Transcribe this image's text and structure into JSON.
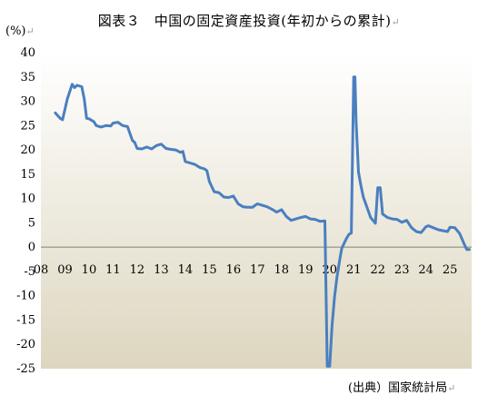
{
  "title": "図表３　中国の固定資産投資(年初からの累計)",
  "unit_label": "(%)",
  "source_label": "(出典）国家統計局",
  "colors": {
    "line": "#4a7fc0",
    "plot_bg_top": "#ffffff",
    "plot_bg_bottom": "#ddd6bf",
    "axis": "#808080"
  },
  "chart_data": {
    "type": "line",
    "title": "図表３　中国の固定資産投資(年初からの累計)",
    "ylabel": "(%)",
    "xlabel": "",
    "ylim": [
      -25,
      40
    ],
    "xlim": [
      2008,
      2025.9
    ],
    "grid": false,
    "x_tick_labels": [
      "08",
      "09",
      "10",
      "11",
      "12",
      "13",
      "14",
      "15",
      "16",
      "17",
      "18",
      "19",
      "20",
      "21",
      "22",
      "23",
      "24",
      "25"
    ],
    "y_tick_labels": [
      "40",
      "35",
      "30",
      "25",
      "20",
      "15",
      "10",
      "5",
      "0",
      "-5",
      "-10",
      "-15",
      "-20",
      "-25"
    ],
    "series": [
      {
        "x": [
          2008.6,
          2008.8,
          2008.9,
          2009.1,
          2009.3,
          2009.4,
          2009.5,
          2009.7,
          2009.8,
          2009.9,
          2010.0,
          2010.2,
          2010.3,
          2010.5,
          2010.7,
          2010.9,
          2011.0,
          2011.2,
          2011.4,
          2011.6,
          2011.8,
          2011.9,
          2012.0,
          2012.2,
          2012.4,
          2012.6,
          2012.8,
          2013.0,
          2013.2,
          2013.4,
          2013.6,
          2013.8,
          2013.9,
          2014.0,
          2014.2,
          2014.4,
          2014.6,
          2014.8,
          2014.9,
          2015.0,
          2015.2,
          2015.4,
          2015.6,
          2015.8,
          2016.0,
          2016.2,
          2016.4,
          2016.6,
          2016.8,
          2016.9,
          2017.0,
          2017.2,
          2017.4,
          2017.6,
          2017.8,
          2018.0,
          2018.2,
          2018.4,
          2018.6,
          2018.8,
          2019.0,
          2019.2,
          2019.4,
          2019.6,
          2019.8,
          2019.9,
          2020.0,
          2020.1,
          2020.2,
          2020.3,
          2020.4,
          2020.5,
          2020.6,
          2020.7,
          2020.8,
          2020.9,
          2021.0,
          2021.05,
          2021.1,
          2021.2,
          2021.3,
          2021.4,
          2021.5,
          2021.7,
          2021.9,
          2022.0,
          2022.1,
          2022.2,
          2022.4,
          2022.6,
          2022.8,
          2023.0,
          2023.2,
          2023.4,
          2023.6,
          2023.8,
          2024.0,
          2024.1,
          2024.3,
          2024.5,
          2024.7,
          2024.9,
          2025.0,
          2025.2,
          2025.4,
          2025.6,
          2025.7,
          2025.8
        ],
        "y": [
          27.6,
          26.5,
          26.2,
          30.5,
          33.5,
          32.8,
          33.3,
          33.0,
          30.5,
          26.5,
          26.4,
          25.8,
          25.0,
          24.7,
          25.0,
          24.9,
          25.5,
          25.7,
          25.0,
          24.8,
          22.0,
          21.5,
          20.3,
          20.2,
          20.6,
          20.2,
          20.9,
          21.2,
          20.3,
          20.1,
          20.0,
          19.5,
          19.7,
          17.6,
          17.3,
          17.0,
          16.4,
          16.1,
          15.7,
          13.5,
          11.4,
          11.2,
          10.3,
          10.2,
          10.5,
          8.9,
          8.3,
          8.2,
          8.2,
          8.6,
          8.9,
          8.6,
          8.3,
          7.8,
          7.2,
          7.7,
          6.3,
          5.5,
          5.8,
          6.1,
          6.3,
          5.8,
          5.7,
          5.3,
          5.4,
          -24.5,
          -24.5,
          -16.1,
          -10.3,
          -6.3,
          -3.1,
          -0.3,
          0.8,
          1.8,
          2.6,
          2.9,
          35.0,
          35.0,
          25.6,
          15.4,
          12.6,
          10.3,
          8.9,
          6.1,
          4.9,
          12.2,
          12.2,
          6.8,
          6.1,
          5.8,
          5.7,
          5.1,
          5.5,
          4.0,
          3.2,
          3.0,
          4.2,
          4.4,
          4.0,
          3.6,
          3.4,
          3.2,
          4.1,
          4.0,
          2.8,
          0.5,
          -0.5,
          -0.5
        ]
      }
    ]
  }
}
